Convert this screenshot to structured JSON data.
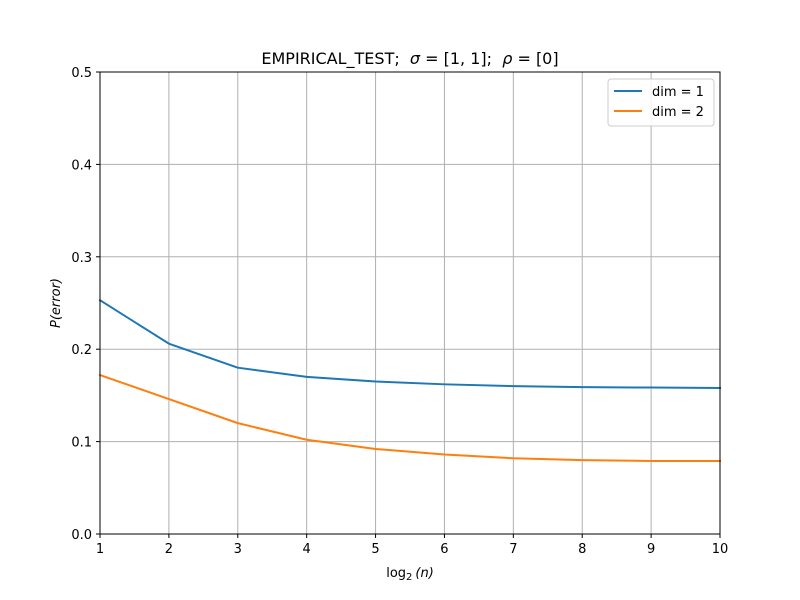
{
  "chart_data": {
    "type": "line",
    "title_parts": {
      "prefix": "EMPIRICAL_TEST;  ",
      "sigma_symbol": "σ",
      "sigma_text": " = [1, 1];  ",
      "rho_symbol": "ρ",
      "rho_text": " = [0]"
    },
    "xlabel": {
      "base": "log",
      "sub": "2",
      "arg": "(n)"
    },
    "ylabel": {
      "prefix": "P",
      "arg": "(error)"
    },
    "xlim": [
      1,
      10
    ],
    "ylim": [
      0,
      0.5
    ],
    "xticks": [
      "1",
      "2",
      "3",
      "4",
      "5",
      "6",
      "7",
      "8",
      "9",
      "10"
    ],
    "yticks": [
      "0.0",
      "0.1",
      "0.2",
      "0.3",
      "0.4",
      "0.5"
    ],
    "grid": true,
    "legend_position": "top-right",
    "x": [
      1,
      2,
      3,
      4,
      5,
      6,
      7,
      8,
      9,
      10
    ],
    "series": [
      {
        "name": "dim = 1",
        "color": "#1f77b4",
        "values": [
          0.253,
          0.206,
          0.18,
          0.17,
          0.165,
          0.162,
          0.16,
          0.159,
          0.1585,
          0.158
        ]
      },
      {
        "name": "dim = 2",
        "color": "#ff7f0e",
        "values": [
          0.172,
          0.146,
          0.12,
          0.102,
          0.092,
          0.086,
          0.082,
          0.08,
          0.079,
          0.079
        ]
      }
    ]
  }
}
